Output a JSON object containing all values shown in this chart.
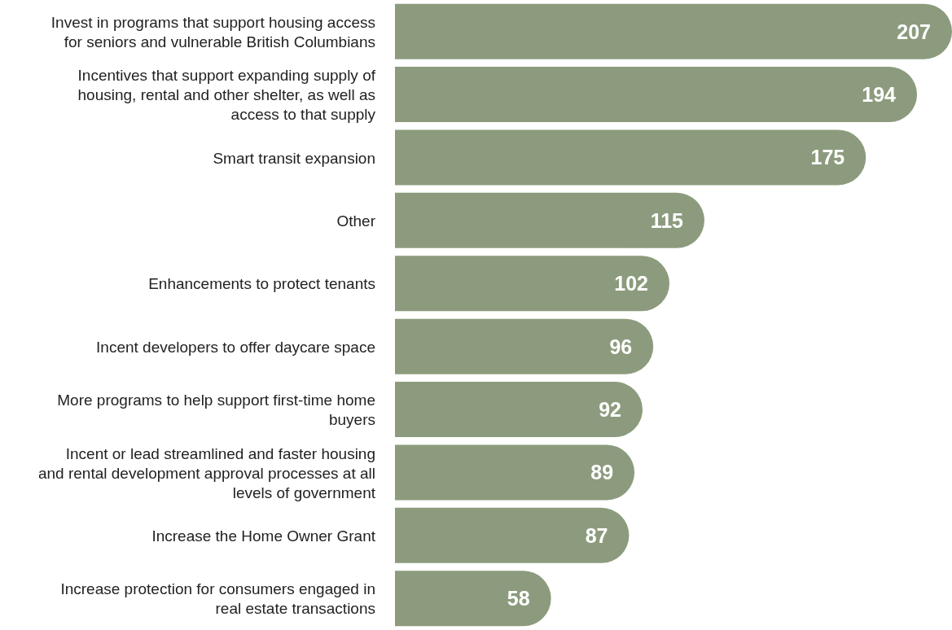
{
  "chart_data": {
    "type": "bar",
    "orientation": "horizontal",
    "categories": [
      "Invest in programs that support housing access for seniors and vulnerable British Columbians",
      "Incentives that support expanding supply of housing, rental and other shelter, as well as access to that supply",
      "Smart transit expansion",
      "Other",
      "Enhancements to protect tenants",
      "Incent developers to offer daycare space",
      "More programs to help support first-time home buyers",
      "Incent or lead streamlined and faster housing and rental development approval processes at all levels of government",
      "Increase the Home Owner Grant",
      "Increase protection for consumers engaged in real estate transactions"
    ],
    "values": [
      207,
      194,
      175,
      115,
      102,
      96,
      92,
      89,
      87,
      58
    ],
    "color": "#8c9b7d",
    "data_labels": true
  }
}
